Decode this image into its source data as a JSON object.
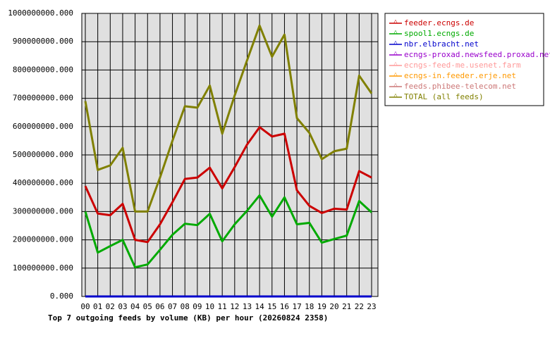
{
  "chart_data": {
    "type": "line",
    "title": "Top 7 outgoing feeds by volume (KB) per hour (20260824 2358)",
    "categories": [
      "00",
      "01",
      "02",
      "03",
      "04",
      "05",
      "06",
      "07",
      "08",
      "09",
      "10",
      "11",
      "12",
      "13",
      "14",
      "15",
      "16",
      "17",
      "18",
      "19",
      "20",
      "21",
      "22",
      "23"
    ],
    "ylim": [
      0,
      1000000000
    ],
    "yticks": [
      {
        "value": 0,
        "label": "0.000"
      },
      {
        "value": 100000000,
        "label": "100000000.000"
      },
      {
        "value": 200000000,
        "label": "200000000.000"
      },
      {
        "value": 300000000,
        "label": "300000000.000"
      },
      {
        "value": 400000000,
        "label": "400000000.000"
      },
      {
        "value": 500000000,
        "label": "500000000.000"
      },
      {
        "value": 600000000,
        "label": "600000000.000"
      },
      {
        "value": 700000000,
        "label": "700000000.000"
      },
      {
        "value": 800000000,
        "label": "800000000.000"
      },
      {
        "value": 900000000,
        "label": "900000000.000"
      },
      {
        "value": 1000000000,
        "label": "1000000000.000"
      }
    ],
    "grid": true,
    "legend": "right",
    "series": [
      {
        "name": "feeder.ecngs.de",
        "color": "#cc0000",
        "values": [
          390000000,
          293000000,
          287000000,
          327000000,
          200000000,
          192000000,
          255000000,
          333000000,
          415000000,
          420000000,
          455000000,
          382000000,
          457000000,
          537000000,
          598000000,
          565000000,
          575000000,
          375000000,
          320000000,
          295000000,
          310000000,
          307000000,
          443000000,
          420000000
        ]
      },
      {
        "name": "spool1.ecngs.de",
        "color": "#00aa00",
        "values": [
          300000000,
          155000000,
          178000000,
          200000000,
          103000000,
          113000000,
          165000000,
          218000000,
          257000000,
          252000000,
          292000000,
          195000000,
          255000000,
          303000000,
          357000000,
          282000000,
          350000000,
          255000000,
          260000000,
          190000000,
          203000000,
          215000000,
          337000000,
          297000000
        ]
      },
      {
        "name": "nbr.elbracht.net",
        "color": "#0000cc",
        "values": [
          0,
          0,
          0,
          0,
          0,
          0,
          0,
          0,
          0,
          0,
          0,
          0,
          0,
          0,
          0,
          0,
          0,
          0,
          0,
          0,
          0,
          0,
          0,
          0
        ]
      },
      {
        "name": "ecngs-proxad.newsfeed.proxad.net",
        "color": "#9900cc",
        "values": [
          0,
          0,
          0,
          0,
          0,
          0,
          0,
          0,
          0,
          0,
          0,
          0,
          0,
          0,
          0,
          0,
          0,
          0,
          0,
          0,
          0,
          0,
          0,
          0
        ]
      },
      {
        "name": "ecngs-feed-me.usenet.farm",
        "color": "#ff9999",
        "values": [
          0,
          0,
          0,
          0,
          0,
          0,
          0,
          0,
          0,
          0,
          0,
          0,
          0,
          0,
          0,
          0,
          0,
          0,
          0,
          0,
          0,
          0,
          0,
          0
        ]
      },
      {
        "name": "ecngs-in.feeder.erje.net",
        "color": "#ff9900",
        "values": [
          0,
          0,
          0,
          0,
          0,
          0,
          0,
          0,
          0,
          0,
          0,
          0,
          0,
          0,
          0,
          0,
          0,
          0,
          0,
          0,
          0,
          0,
          0,
          0
        ]
      },
      {
        "name": "feeds.phibee-telecom.net",
        "color": "#cc7777",
        "values": [
          0,
          0,
          0,
          0,
          0,
          0,
          0,
          0,
          0,
          0,
          0,
          0,
          0,
          0,
          0,
          0,
          0,
          0,
          0,
          0,
          0,
          0,
          0,
          0
        ]
      },
      {
        "name": "TOTAL (all feeds)",
        "color": "#808000",
        "values": [
          690000000,
          447000000,
          463000000,
          525000000,
          300000000,
          300000000,
          420000000,
          550000000,
          672000000,
          667000000,
          745000000,
          575000000,
          710000000,
          835000000,
          957000000,
          847000000,
          925000000,
          630000000,
          578000000,
          485000000,
          513000000,
          522000000,
          780000000,
          717000000
        ]
      }
    ]
  }
}
